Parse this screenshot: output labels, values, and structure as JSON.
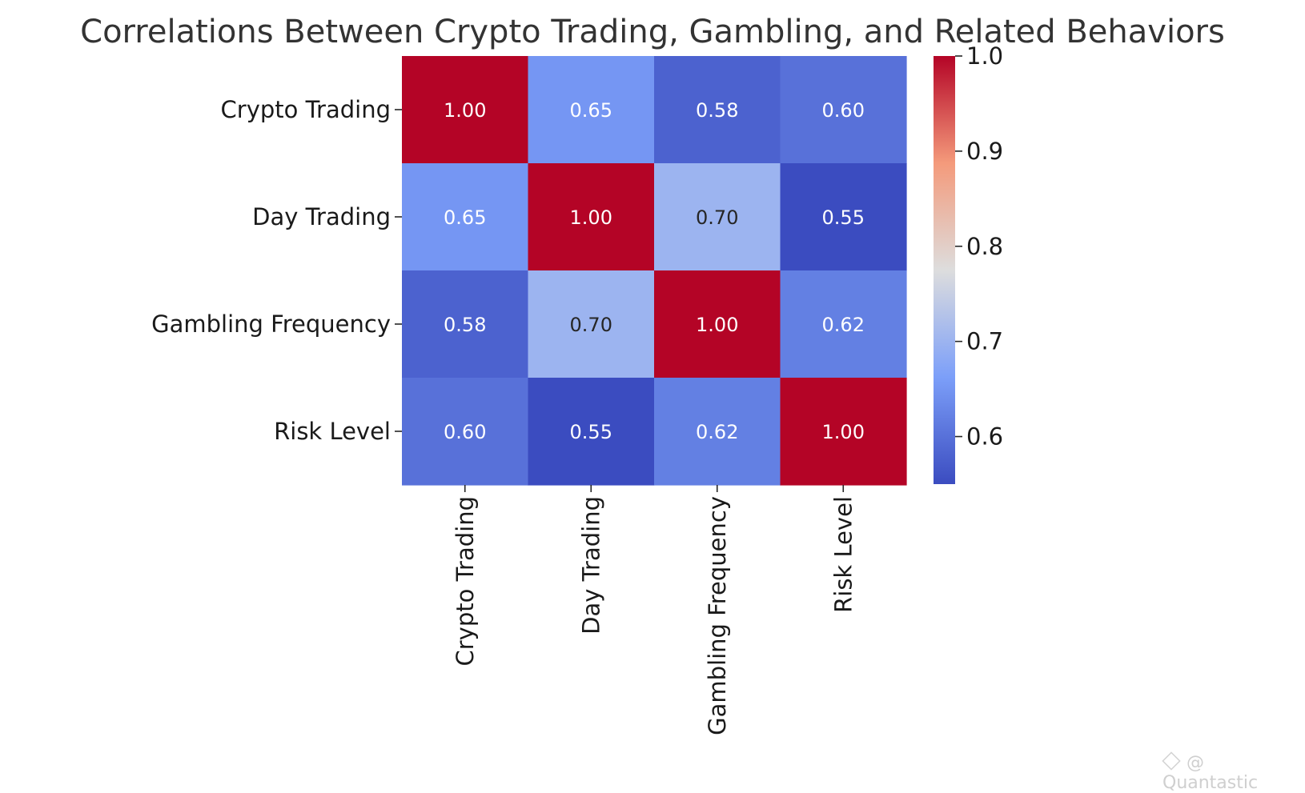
{
  "chart_data": {
    "type": "heatmap",
    "title": "Correlations Between Crypto Trading, Gambling, and Related Behaviors",
    "rows": [
      "Crypto Trading",
      "Day Trading",
      "Gambling Frequency",
      "Risk Level"
    ],
    "columns": [
      "Crypto Trading",
      "Day Trading",
      "Gambling Frequency",
      "Risk Level"
    ],
    "values": [
      [
        1.0,
        0.65,
        0.58,
        0.6
      ],
      [
        0.65,
        1.0,
        0.7,
        0.55
      ],
      [
        0.58,
        0.7,
        1.0,
        0.62
      ],
      [
        0.6,
        0.55,
        0.62,
        1.0
      ]
    ],
    "annotation_format": "2 decimals",
    "colormap": "coolwarm",
    "color_range": [
      0.55,
      1.0
    ],
    "colorbar": {
      "ticks": [
        0.6,
        0.7,
        0.8,
        0.9,
        1.0
      ],
      "labels": [
        "0.6",
        "0.7",
        "0.8",
        "0.9",
        "1.0"
      ]
    },
    "x_tick_rotation": "vertical"
  },
  "watermark": {
    "text": "@ Quantastic"
  }
}
